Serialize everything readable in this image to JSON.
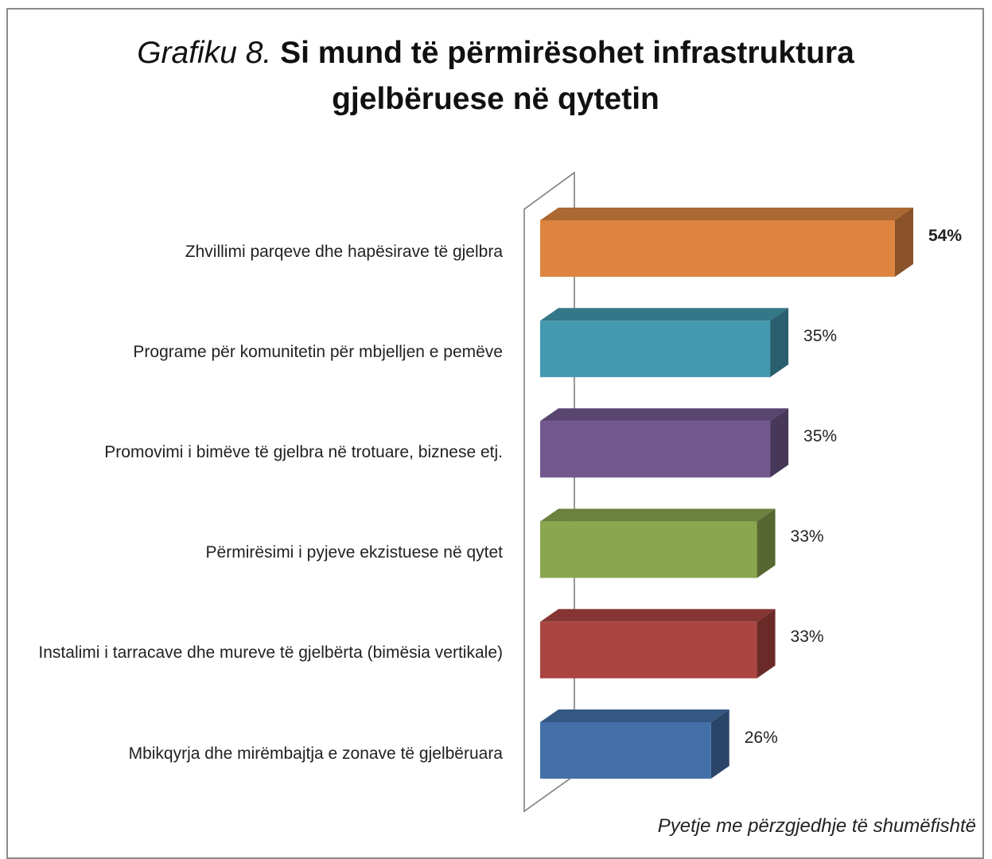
{
  "chart_data": {
    "type": "bar3d",
    "title_prefix": "Grafiku 8.",
    "title": "Si mund të përmirësohet infrastruktura gjelbëruese në qytetin",
    "note": "Pyetje me përzgjedhje të shumëfishtë",
    "categories": [
      "Zhvillimi parqeve dhe hapësirave të gjelbra",
      "Programe për komunitetin për mbjelljen e pemëve",
      "Promovimi i bimëve të gjelbra në trotuare, biznese etj.",
      "Përmirësimi i pyjeve ekzistuese në qytet",
      "Instalimi i tarracave dhe mureve të gjelbërta (bimësia vertikale)",
      "Mbikqyrja dhe mirëmbajtja e  zonave të gjelbëruara"
    ],
    "values": [
      54,
      35,
      35,
      33,
      33,
      26
    ],
    "value_labels": [
      "54%",
      "35%",
      "35%",
      "33%",
      "33%",
      "26%"
    ],
    "colors": [
      "#dd8540",
      "#4399b0",
      "#72588f",
      "#8aa64f",
      "#ab4541",
      "#4470a8"
    ]
  }
}
